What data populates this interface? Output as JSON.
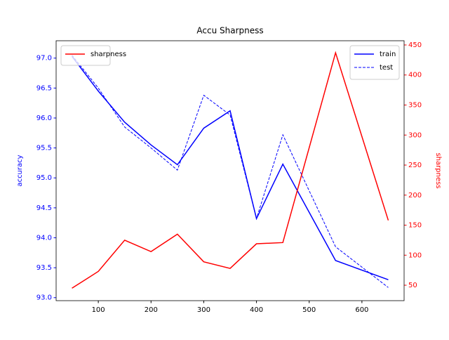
{
  "chart_data": {
    "type": "line",
    "title": "Accu Sharpness",
    "ylabel": "accuracy",
    "y2label": "sharpness",
    "ylabel_color": "#0000ff",
    "y2label_color": "#ff0000",
    "x": [
      50,
      100,
      150,
      200,
      250,
      300,
      350,
      400,
      450,
      550,
      650
    ],
    "series": [
      {
        "name": "train",
        "color": "#0000ff",
        "linestyle": "solid",
        "axis": "y",
        "values": [
          97.03,
          96.45,
          95.93,
          95.55,
          95.22,
          95.83,
          96.12,
          94.32,
          95.23,
          93.62,
          93.3
        ]
      },
      {
        "name": "test",
        "color": "#0000ff",
        "linestyle": "dashed",
        "axis": "y",
        "values": [
          97.05,
          96.5,
          95.85,
          95.5,
          95.13,
          96.38,
          96.05,
          94.32,
          95.72,
          93.85,
          93.17
        ]
      },
      {
        "name": "sharpness",
        "color": "#ff0000",
        "linestyle": "solid",
        "axis": "y2",
        "values": [
          45,
          73,
          125,
          106,
          135,
          89,
          78,
          119,
          121,
          437,
          158
        ]
      }
    ],
    "xlim": [
      20,
      680
    ],
    "xticks": [
      100,
      200,
      300,
      400,
      500,
      600
    ],
    "ylim": [
      92.95,
      97.29
    ],
    "yticks": [
      {
        "value": 93,
        "label": "93.0"
      },
      93.5,
      {
        "value": 94,
        "label": "94.0"
      },
      94.5,
      {
        "value": 95,
        "label": "95.0"
      },
      95.5,
      {
        "value": 96,
        "label": "96.0"
      },
      96.5,
      {
        "value": 97,
        "label": "97.0"
      }
    ],
    "y2lim": [
      24.3,
      457
    ],
    "y2ticks": [
      50,
      100,
      150,
      200,
      250,
      300,
      350,
      400,
      450
    ],
    "legend": "upper right",
    "legend2": "upper left"
  }
}
